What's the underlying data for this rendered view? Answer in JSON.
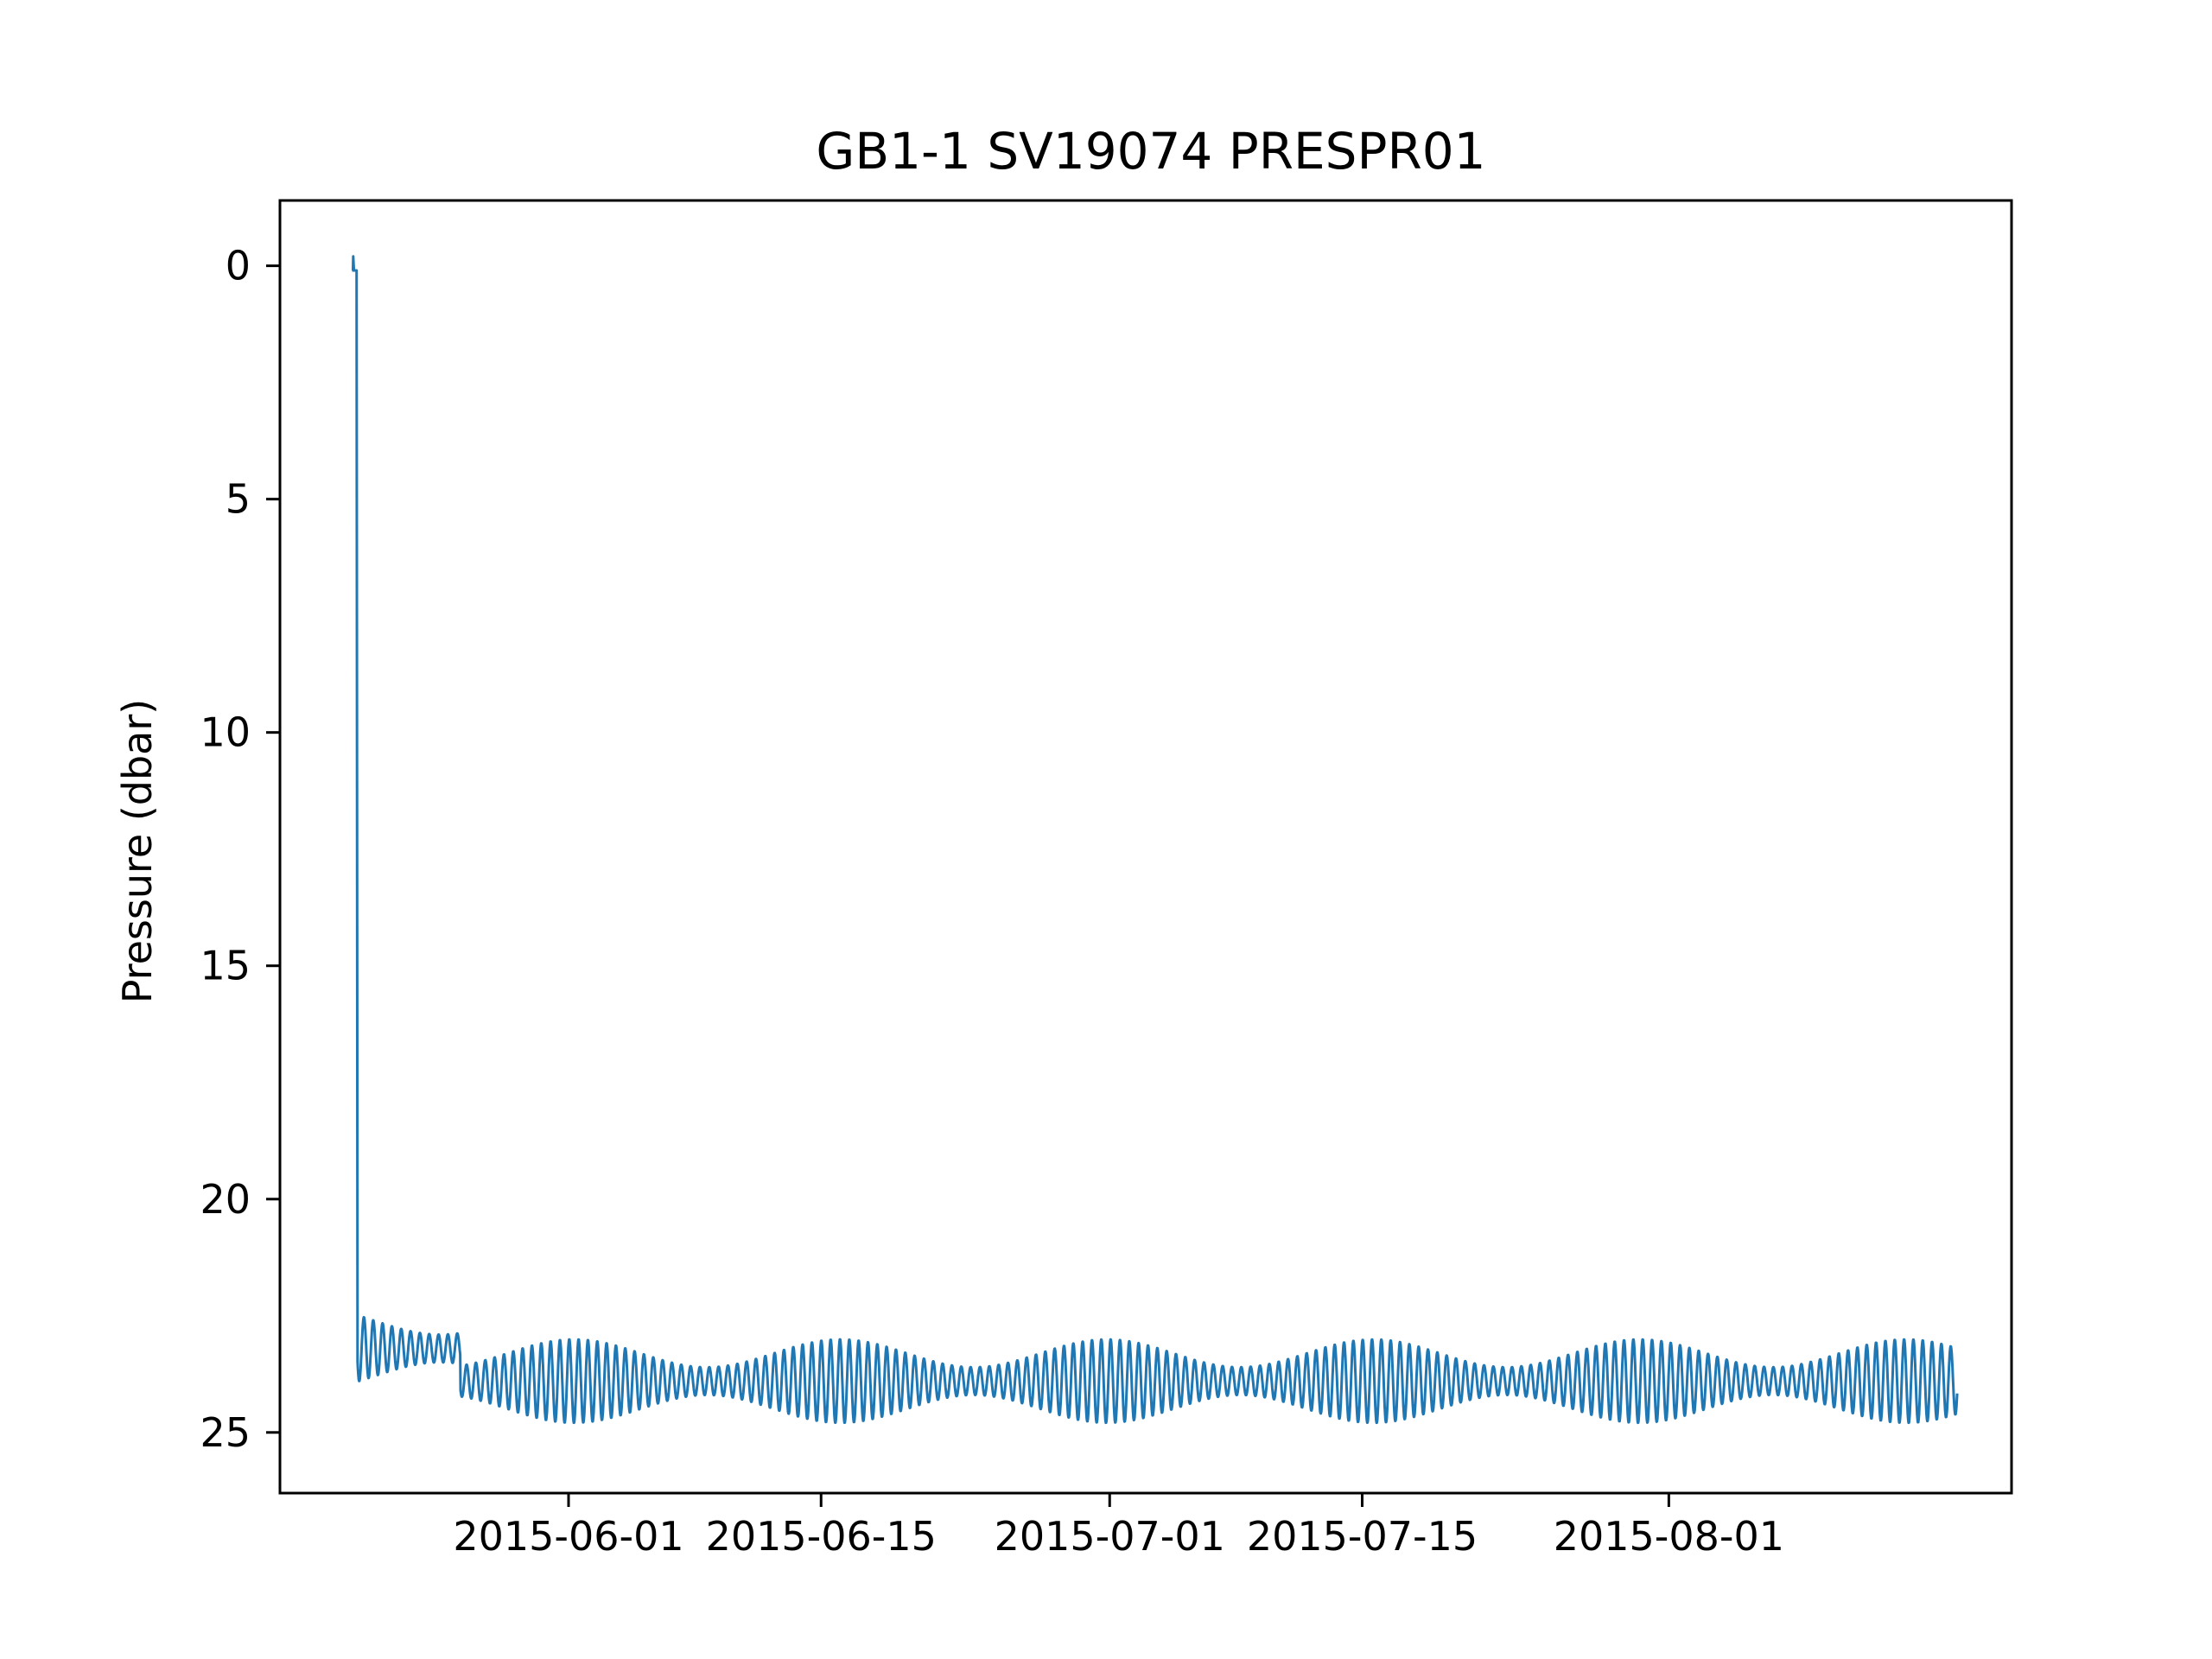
{
  "chart_data": {
    "type": "line",
    "title": "GB1-1 SV19074 PRESPR01",
    "xlabel": "",
    "ylabel": "Pressure (dbar)",
    "y_inverted": true,
    "ylim": [
      26.3,
      -1.4
    ],
    "xlim": [
      "2015-05-16",
      "2015-08-20"
    ],
    "x_ticks": [
      "2015-06-01",
      "2015-06-15",
      "2015-07-01",
      "2015-07-15",
      "2015-08-01"
    ],
    "y_ticks": [
      "0",
      "5",
      "10",
      "15",
      "20",
      "25"
    ],
    "grid": false,
    "line_color": "#1f77b4",
    "series": [
      {
        "name": "",
        "start": "2015-05-20",
        "end": "2015-08-17",
        "surface_pressure": 0.1,
        "deployed_from": "2015-05-20",
        "deployed_level": 23.2,
        "level_step_date": "2015-05-26",
        "level_after_step": 23.9,
        "tidal_amplitude_min": 0.3,
        "tidal_amplitude_max": 0.9,
        "tidal_period_hours": 12.42
      }
    ]
  }
}
